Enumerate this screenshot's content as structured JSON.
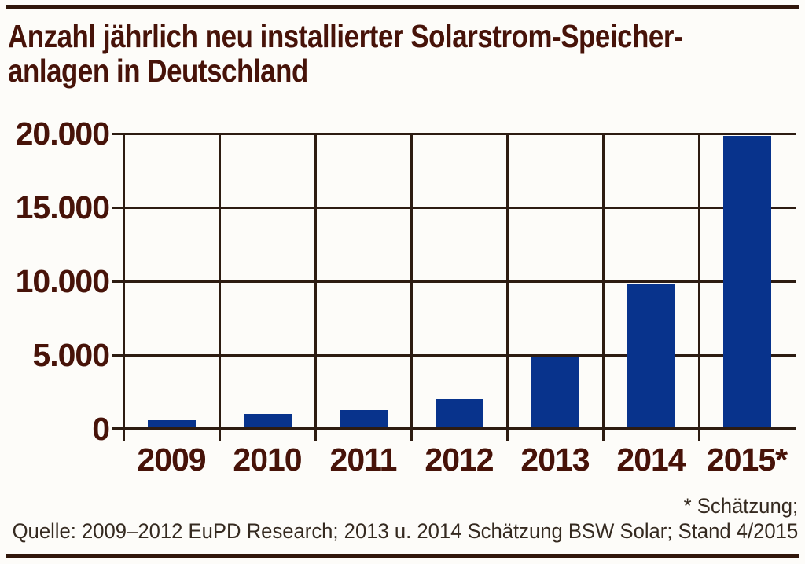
{
  "title": {
    "line1": "Anzahl jährlich neu installierter Solarstrom-Speicher-",
    "line2": "anlagen in Deutschland"
  },
  "footnote": "* Schätzung;",
  "source": "Quelle: 2009–2012 EuPD Research; 2013 u. 2014 Schätzung BSW Solar; Stand 4/2015",
  "colors": {
    "bar_blue": "#08338c",
    "text_maroon": "#471309",
    "gridline": "#2d1c12",
    "rule": "#31170b",
    "footer_text": "#352a20",
    "background": "#fdfcf9"
  },
  "chart_data": {
    "type": "bar",
    "title": "Anzahl jährlich neu installierter Solarstrom-Speicheranlagen in Deutschland",
    "categories": [
      "2009",
      "2010",
      "2011",
      "2012",
      "2013",
      "2014",
      "2015*"
    ],
    "values": [
      600,
      1000,
      1300,
      2000,
      5000,
      10000,
      20000
    ],
    "xlabel": "",
    "ylabel": "",
    "ylim": [
      0,
      20000
    ],
    "yticks": [
      {
        "value": 0,
        "label": "0"
      },
      {
        "value": 5000,
        "label": "5.000"
      },
      {
        "value": 10000,
        "label": "10.000"
      },
      {
        "value": 15000,
        "label": "15.000"
      },
      {
        "value": 20000,
        "label": "20.000"
      }
    ],
    "grid": true,
    "legend": false
  }
}
